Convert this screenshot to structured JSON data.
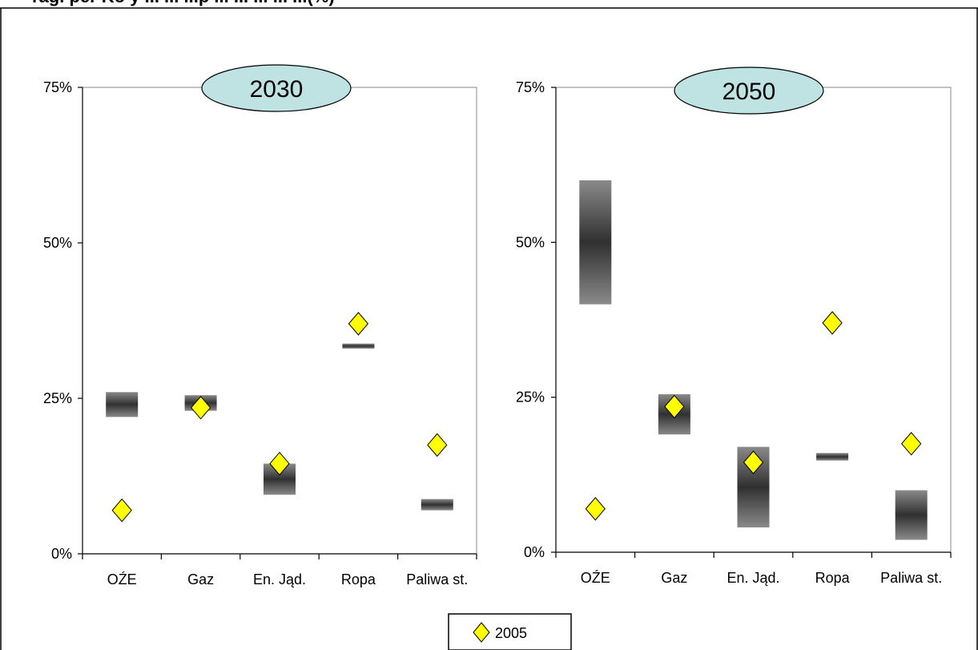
{
  "header": {
    "title_visible": "ragi per Ko y ... ... ...p ... ... ... ... ...(%)"
  },
  "colors": {
    "range_bar_dark": "#303030",
    "range_bar_light": "#8a8a8a",
    "marker_fill": "#ffff00",
    "marker_stroke": "#000000",
    "badge_fill": "#bfe3e3"
  },
  "chart_data": [
    {
      "type": "range-bar",
      "title": "2030",
      "categories": [
        "OŹE",
        "Gaz",
        "En. Jąd.",
        "Ropa",
        "Paliwa st."
      ],
      "y_ticks": [
        "0%",
        "25%",
        "50%",
        "75%"
      ],
      "ylim": [
        0,
        75
      ],
      "ranges": [
        {
          "low": 22.0,
          "high": 26.0
        },
        {
          "low": 23.0,
          "high": 25.5
        },
        {
          "low": 9.5,
          "high": 14.5
        },
        {
          "low": 33.0,
          "high": 33.8
        },
        {
          "low": 7.0,
          "high": 8.8
        }
      ],
      "series": [
        {
          "name": "2005",
          "values": [
            7.0,
            23.5,
            14.5,
            37.0,
            17.5
          ]
        }
      ]
    },
    {
      "type": "range-bar",
      "title": "2050",
      "categories": [
        "OŹE",
        "Gaz",
        "En. Jąd.",
        "Ropa",
        "Paliwa st."
      ],
      "y_ticks": [
        "0%",
        "25%",
        "50%",
        "75%"
      ],
      "ylim": [
        0,
        75
      ],
      "ranges": [
        {
          "low": 40.0,
          "high": 60.0
        },
        {
          "low": 19.0,
          "high": 25.5
        },
        {
          "low": 4.0,
          "high": 17.0
        },
        {
          "low": 14.8,
          "high": 16.0
        },
        {
          "low": 2.0,
          "high": 10.0
        }
      ],
      "series": [
        {
          "name": "2005",
          "values": [
            7.0,
            23.5,
            14.5,
            37.0,
            17.5
          ]
        }
      ]
    }
  ],
  "legend": {
    "label": "2005"
  }
}
